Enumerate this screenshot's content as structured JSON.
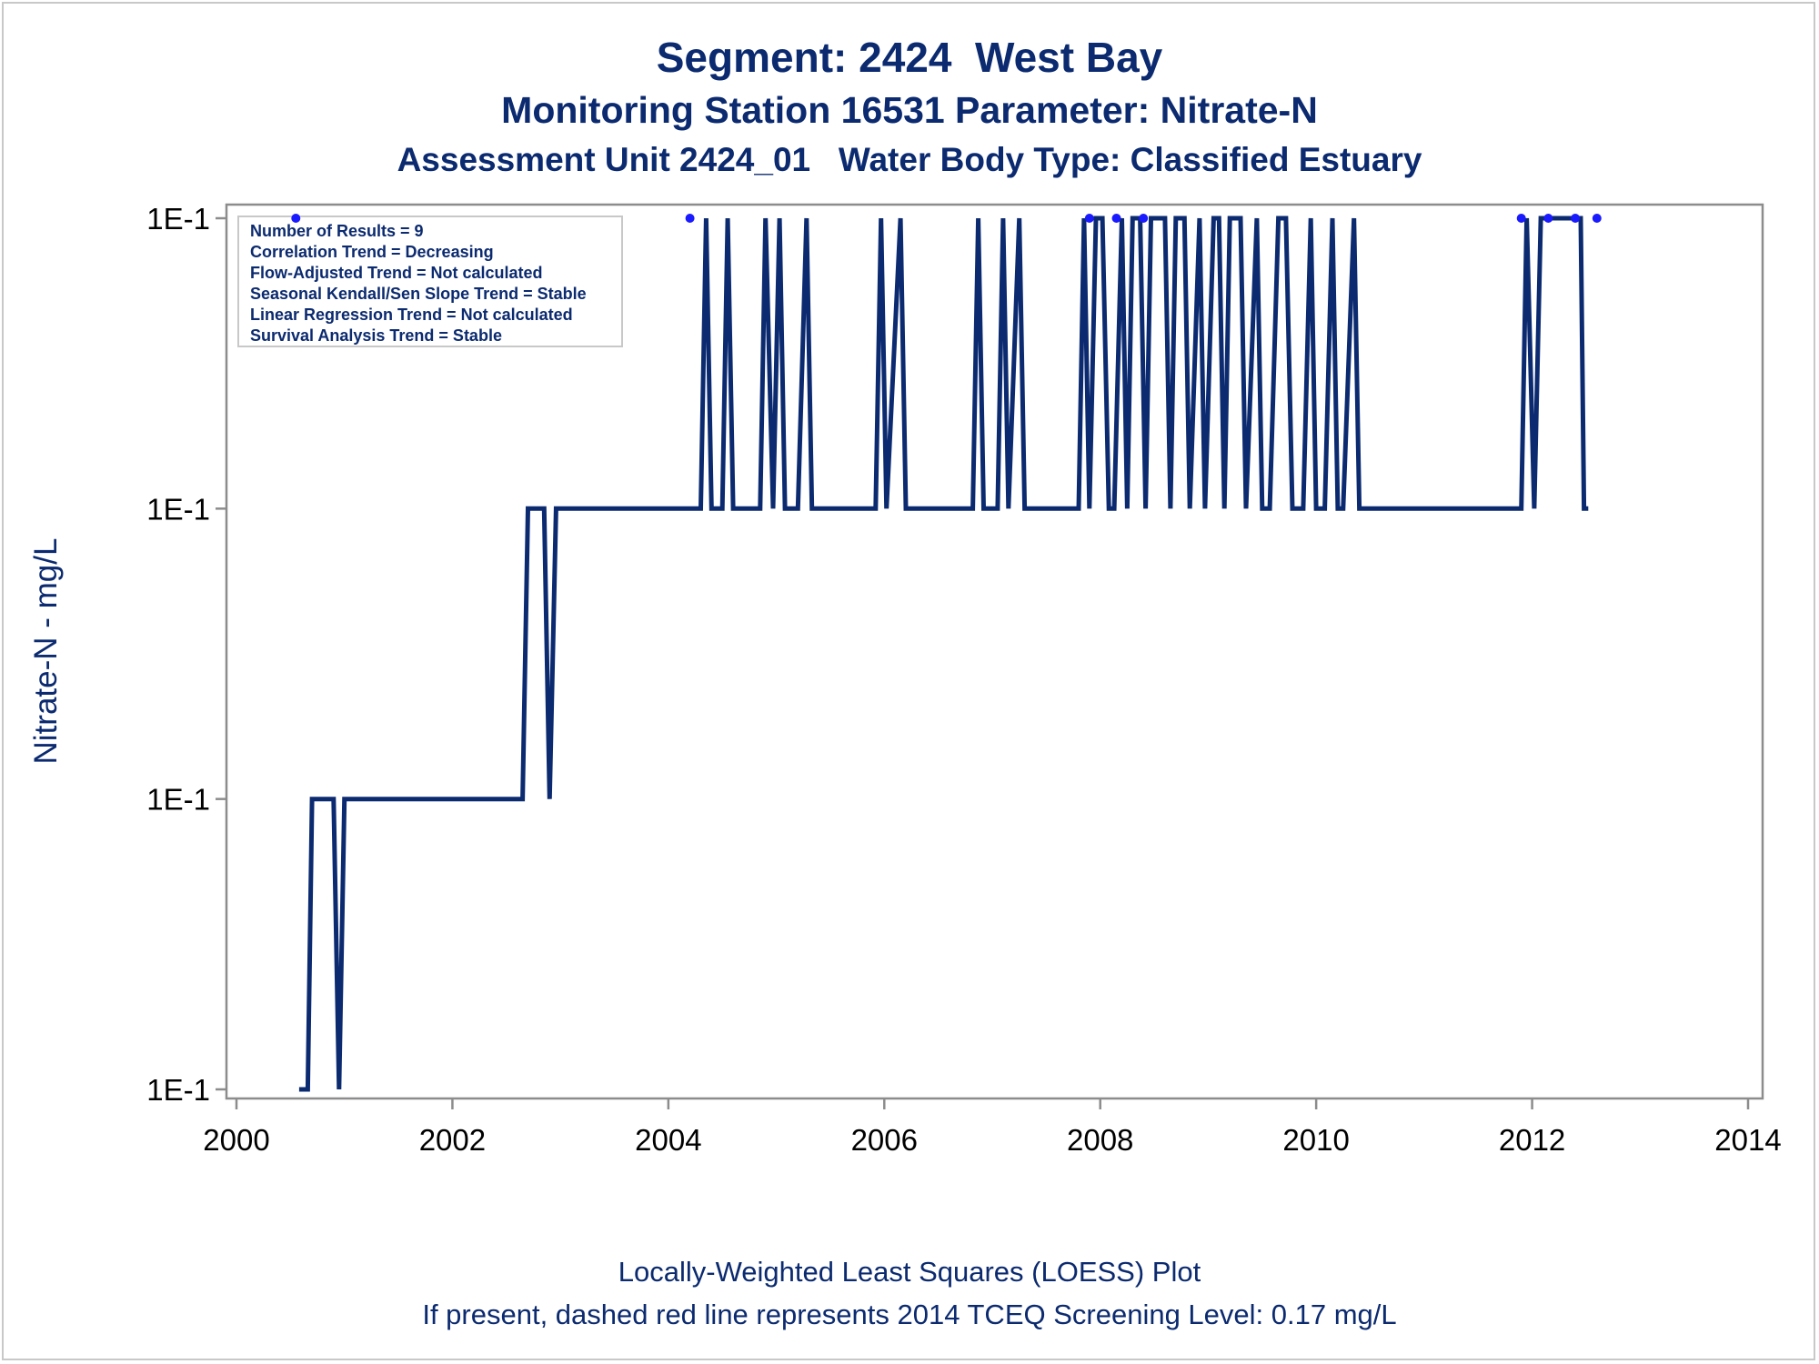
{
  "titles": {
    "line1": "Segment: 2424  West Bay",
    "line2": "Monitoring Station 16531 Parameter: Nitrate-N",
    "line3": "Assessment Unit 2424_01   Water Body Type: Classified Estuary"
  },
  "footnotes": {
    "line1": "Locally-Weighted Least Squares (LOESS) Plot",
    "line2": "If present, dashed red line represents 2014 TCEQ Screening Level: 0.17 mg/L"
  },
  "colors": {
    "series": "#0b2a6f",
    "points": "#1a1aff",
    "axis": "#8c8c8c",
    "text": "#0b2a6f"
  },
  "chart_data": {
    "type": "line",
    "title": "Segment: 2424  West Bay",
    "ylabel": "Nitrate-N - mg/L",
    "xlabel": "",
    "xlim": [
      2000,
      2014
    ],
    "x_ticks": [
      2000,
      2002,
      2004,
      2006,
      2008,
      2010,
      2012,
      2014
    ],
    "y_tick_labels": [
      "1E-1",
      "1E-1",
      "1E-1",
      "1E-1"
    ],
    "y_levels_note": "four tick positions, all labelled 1E-1; level index 0 = bottom tick, 3 = top tick",
    "ylim": [
      0,
      3
    ],
    "grid": false,
    "legend_box": {
      "lines": [
        "Number of Results = 9",
        "Correlation Trend = Decreasing",
        "Flow-Adjusted Trend = Not calculated",
        "Seasonal Kendall/Sen Slope Trend = Stable",
        "Linear Regression Trend = Not calculated",
        "Survival Analysis Trend = Stable"
      ],
      "placement": "top-left"
    },
    "series": [
      {
        "x": [
          2000.58,
          2000.66,
          2000.7,
          2000.9,
          2000.95,
          2001.0,
          2002.65,
          2002.7,
          2002.85,
          2002.9,
          2002.96,
          2004.3,
          2004.35,
          2004.4,
          2004.5,
          2004.55,
          2004.6,
          2004.85,
          2004.9,
          2004.97,
          2005.03,
          2005.08,
          2005.2,
          2005.28,
          2005.33,
          2005.92,
          2005.97,
          2006.02,
          2006.15,
          2006.2,
          2006.28,
          2006.82,
          2006.87,
          2006.92,
          2007.05,
          2007.1,
          2007.15,
          2007.25,
          2007.3,
          2007.35,
          2007.8,
          2007.85,
          2007.9,
          2007.96,
          2008.02,
          2008.08,
          2008.13,
          2008.2,
          2008.25,
          2008.3,
          2008.37,
          2008.42,
          2008.47,
          2008.6,
          2008.65,
          2008.7,
          2008.78,
          2008.83,
          2008.92,
          2008.97,
          2009.05,
          2009.1,
          2009.15,
          2009.2,
          2009.3,
          2009.35,
          2009.45,
          2009.5,
          2009.57,
          2009.65,
          2009.72,
          2009.78,
          2009.88,
          2009.95,
          2010.0,
          2010.08,
          2010.15,
          2010.2,
          2010.25,
          2010.35,
          2010.4,
          2010.45,
          2011.9,
          2011.95,
          2012.02,
          2012.08,
          2012.4,
          2012.45,
          2012.48,
          2012.52
        ],
        "y": [
          0,
          0,
          1,
          1,
          0,
          1,
          1,
          2,
          2,
          1,
          2,
          2,
          3,
          2,
          2,
          3,
          2,
          2,
          3,
          2,
          3,
          2,
          2,
          3,
          2,
          2,
          3,
          2,
          3,
          2,
          2,
          2,
          3,
          2,
          2,
          3,
          2,
          3,
          2,
          2,
          2,
          3,
          2,
          3,
          3,
          2,
          2,
          3,
          2,
          3,
          3,
          2,
          3,
          3,
          2,
          3,
          3,
          2,
          3,
          2,
          3,
          3,
          2,
          3,
          3,
          2,
          3,
          2,
          2,
          3,
          3,
          2,
          2,
          3,
          2,
          2,
          3,
          2,
          2,
          3,
          2,
          2,
          2,
          3,
          2,
          3,
          3,
          3,
          2,
          2
        ]
      }
    ],
    "points": {
      "x": [
        2000.55,
        2004.2,
        2007.9,
        2008.15,
        2008.4,
        2011.9,
        2012.15,
        2012.4,
        2012.6
      ],
      "y": [
        3,
        3,
        3,
        3,
        3,
        3,
        3,
        3,
        3
      ]
    }
  }
}
